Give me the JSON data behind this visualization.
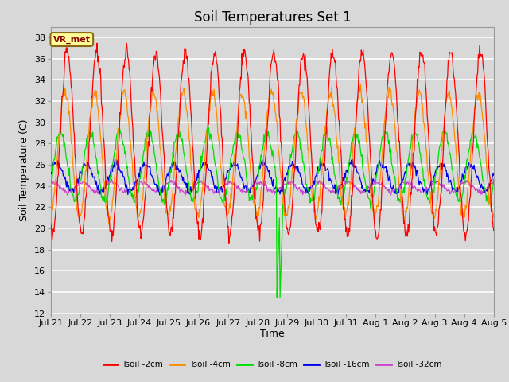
{
  "title": "Soil Temperatures Set 1",
  "xlabel": "Time",
  "ylabel": "Soil Temperature (C)",
  "ylim": [
    12,
    39
  ],
  "yticks": [
    12,
    14,
    16,
    18,
    20,
    22,
    24,
    26,
    28,
    30,
    32,
    34,
    36,
    38
  ],
  "colors": {
    "Tsoil -2cm": "#FF0000",
    "Tsoil -4cm": "#FF8C00",
    "Tsoil -8cm": "#00DD00",
    "Tsoil -16cm": "#0000EE",
    "Tsoil -32cm": "#CC44CC"
  },
  "legend_label": "VR_met",
  "bg_color": "#D8D8D8",
  "grid_color": "#FFFFFF",
  "title_fontsize": 12,
  "label_fontsize": 9,
  "tick_fontsize": 8,
  "n_days": 15,
  "spike_day": 7.75,
  "spike_min": 13.5
}
